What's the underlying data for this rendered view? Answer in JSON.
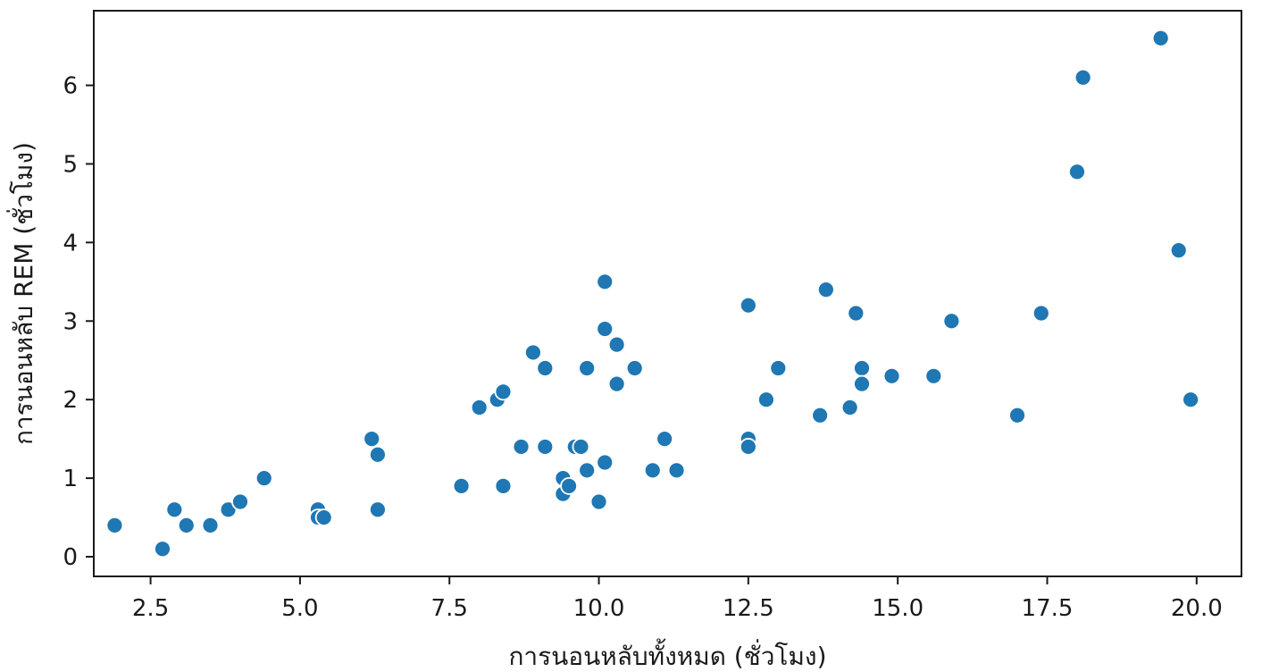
{
  "chart_data": {
    "type": "scatter",
    "title": "",
    "xlabel": "การนอนหลับทั้งหมด (ชั่วโมง)",
    "ylabel": "การนอนหลับ REM (ชั่วโมง)",
    "xlim": [
      1.55,
      20.75
    ],
    "ylim": [
      -0.25,
      6.95
    ],
    "xticks": [
      2.5,
      5.0,
      7.5,
      10.0,
      12.5,
      15.0,
      17.5,
      20.0
    ],
    "xtick_labels": [
      "2.5",
      "5.0",
      "7.5",
      "10.0",
      "12.5",
      "15.0",
      "17.5",
      "20.0"
    ],
    "yticks": [
      0,
      1,
      2,
      3,
      4,
      5,
      6
    ],
    "ytick_labels": [
      "0",
      "1",
      "2",
      "3",
      "4",
      "5",
      "6"
    ],
    "grid": false,
    "marker_color": "#1f77b4",
    "marker_edge_color": "#ffffff",
    "points": [
      [
        1.9,
        0.4
      ],
      [
        2.7,
        0.1
      ],
      [
        2.9,
        0.6
      ],
      [
        3.1,
        0.4
      ],
      [
        3.5,
        0.4
      ],
      [
        3.8,
        0.6
      ],
      [
        4.0,
        0.7
      ],
      [
        4.4,
        1.0
      ],
      [
        5.3,
        0.6
      ],
      [
        5.3,
        0.5
      ],
      [
        5.4,
        0.5
      ],
      [
        6.2,
        1.5
      ],
      [
        6.3,
        1.3
      ],
      [
        6.3,
        0.6
      ],
      [
        7.7,
        0.9
      ],
      [
        8.0,
        1.9
      ],
      [
        8.3,
        2.0
      ],
      [
        8.4,
        2.1
      ],
      [
        8.4,
        0.9
      ],
      [
        8.7,
        1.4
      ],
      [
        8.9,
        2.6
      ],
      [
        9.1,
        2.4
      ],
      [
        9.1,
        1.4
      ],
      [
        9.4,
        1.0
      ],
      [
        9.4,
        0.8
      ],
      [
        9.5,
        0.9
      ],
      [
        9.6,
        1.4
      ],
      [
        9.7,
        1.4
      ],
      [
        9.8,
        2.4
      ],
      [
        9.8,
        1.1
      ],
      [
        10.0,
        0.7
      ],
      [
        10.1,
        3.5
      ],
      [
        10.1,
        2.9
      ],
      [
        10.1,
        1.2
      ],
      [
        10.3,
        2.7
      ],
      [
        10.3,
        2.2
      ],
      [
        10.6,
        2.4
      ],
      [
        10.9,
        1.1
      ],
      [
        11.1,
        1.5
      ],
      [
        11.3,
        1.1
      ],
      [
        12.5,
        3.2
      ],
      [
        12.5,
        1.5
      ],
      [
        12.5,
        1.4
      ],
      [
        12.8,
        2.0
      ],
      [
        13.0,
        2.4
      ],
      [
        13.7,
        1.8
      ],
      [
        13.8,
        3.4
      ],
      [
        14.2,
        1.9
      ],
      [
        14.3,
        3.1
      ],
      [
        14.4,
        2.4
      ],
      [
        14.4,
        2.2
      ],
      [
        14.9,
        2.3
      ],
      [
        15.6,
        2.3
      ],
      [
        15.9,
        3.0
      ],
      [
        17.0,
        1.8
      ],
      [
        17.4,
        3.1
      ],
      [
        18.0,
        4.9
      ],
      [
        18.1,
        6.1
      ],
      [
        19.4,
        6.6
      ],
      [
        19.7,
        3.9
      ],
      [
        19.9,
        2.0
      ]
    ]
  }
}
